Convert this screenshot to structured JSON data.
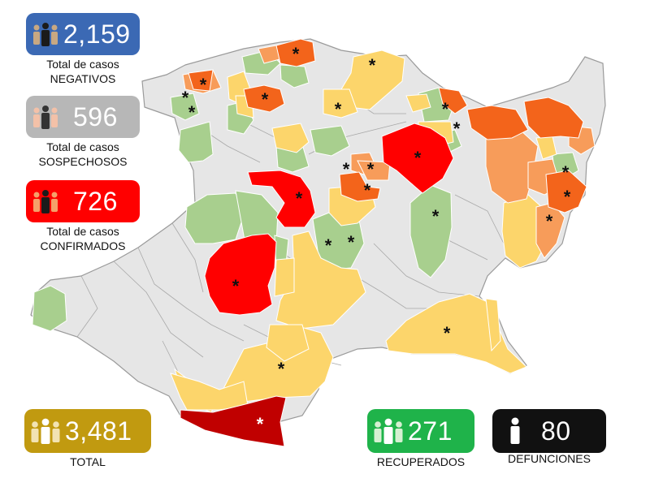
{
  "colors": {
    "negativos": "#3b69b4",
    "sospechosos": "#b7b7b7",
    "confirmados": "#ff0000",
    "total": "#c19a10",
    "recuperados": "#1fb34a",
    "defunciones": "#111111",
    "none": "#e6e6e6",
    "green": "#a8cf8e",
    "yellow": "#fcd56b",
    "light_orange": "#f79c5a",
    "orange": "#f3641b",
    "red": "#ff0000",
    "dark_red": "#c00000"
  },
  "stats": {
    "negativos": {
      "value": "2,159",
      "line1": "Total de casos",
      "line2": "NEGATIVOS",
      "icon": "people-icon"
    },
    "sospechosos": {
      "value": "596",
      "line1": "Total de casos",
      "line2": "SOSPECHOSOS",
      "icon": "people-icon"
    },
    "confirmados": {
      "value": "726",
      "line1": "Total de casos",
      "line2": "CONFIRMADOS",
      "icon": "people-icon"
    },
    "total": {
      "value": "3,481",
      "label": "TOTAL",
      "icon": "people-icon"
    },
    "recuperados": {
      "value": "271",
      "label": "RECUPERADOS",
      "icon": "people-icon"
    },
    "defunciones": {
      "value": "80",
      "label": "DEFUNCIONES",
      "icon": "person-icon"
    }
  },
  "marker": "*"
}
